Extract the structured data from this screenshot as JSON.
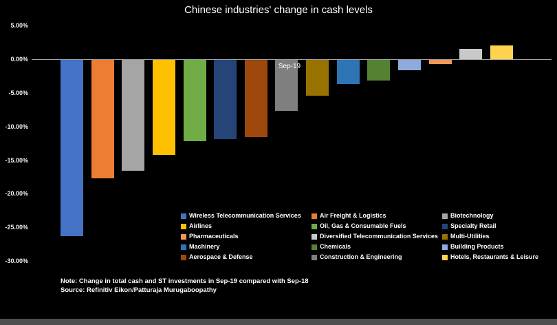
{
  "chart_data": {
    "type": "bar",
    "title": "Chinese industries' change in cash levels",
    "category_label": "Sep-19",
    "xlabel": "",
    "ylabel": "",
    "ylim": [
      -30,
      5
    ],
    "grid": false,
    "legend_position": "bottom-right",
    "ytick_values": [
      5,
      0,
      -5,
      -10,
      -15,
      -20,
      -25,
      -30
    ],
    "ytick_labels": [
      "5.00%",
      "0.00%",
      "-5.00%",
      "-10.00%",
      "-15.00%",
      "-20.00%",
      "-25.00%",
      "-30.00%"
    ],
    "series": [
      {
        "name": "Wireless Telecommunication Services",
        "value": -26.2,
        "color": "#4472C4"
      },
      {
        "name": "Air Freight & Logistics",
        "value": -17.6,
        "color": "#ED7D31"
      },
      {
        "name": "Biotechnology",
        "value": -16.5,
        "color": "#A5A5A5"
      },
      {
        "name": "Airlines",
        "value": -14.1,
        "color": "#FFC000"
      },
      {
        "name": "Oil, Gas & Consumable Fuels",
        "value": -12.1,
        "color": "#70AD47"
      },
      {
        "name": "Specialty Retail",
        "value": -11.8,
        "color": "#264478"
      },
      {
        "name": "Aerospace & Defense",
        "value": -11.5,
        "color": "#9E480E"
      },
      {
        "name": "Construction & Engineering",
        "value": -7.6,
        "color": "#7F7F7F"
      },
      {
        "name": "Multi-Utilities",
        "value": -5.3,
        "color": "#997300"
      },
      {
        "name": "Machinery",
        "value": -3.6,
        "color": "#2E75B6"
      },
      {
        "name": "Chemicals",
        "value": -3.1,
        "color": "#548235"
      },
      {
        "name": "Building Products",
        "value": -1.5,
        "color": "#8FAADC"
      },
      {
        "name": "Pharmaceuticals",
        "value": -0.6,
        "color": "#F1975A"
      },
      {
        "name": "Diversified Telecommunication Services",
        "value": 1.5,
        "color": "#C9C9C9"
      },
      {
        "name": "Hotels, Restaurants & Leisure",
        "value": 2.0,
        "color": "#FFD34D"
      }
    ],
    "legend_rows": [
      [
        "Wireless Telecommunication Services",
        "Air Freight & Logistics",
        "Biotechnology"
      ],
      [
        "Airlines",
        "Oil, Gas & Consumable Fuels",
        "Specialty Retail"
      ],
      [
        "Pharmaceuticals",
        "Diversified Telecommunication Services",
        "Multi-Utilities"
      ],
      [
        "Machinery",
        "Chemicals",
        "Building Products"
      ],
      [
        "Aerospace & Defense",
        "Construction & Engineering",
        "Hotels, Restaurants & Leisure"
      ]
    ],
    "note": "Note: Change in total cash and ST investments in Sep-19 compared with Sep-18",
    "source": "Source: Refinitiv Eikon/Patturaja Murugaboopathy"
  }
}
